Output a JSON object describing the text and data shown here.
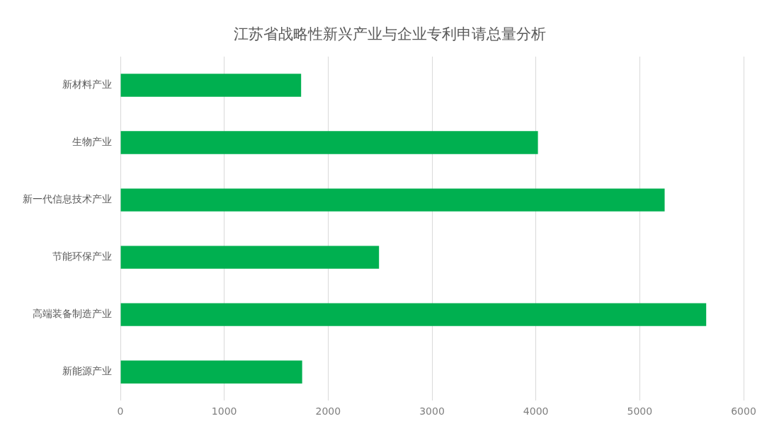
{
  "chart_data": {
    "type": "bar",
    "orientation": "horizontal",
    "title": "江苏省战略性新兴产业与企业专利申请总量分析",
    "categories": [
      "新材料产业",
      "生物产业",
      "新一代信息技术产业",
      "节能环保产业",
      "高端装备制造产业",
      "新能源产业"
    ],
    "values": [
      1740,
      4020,
      5240,
      2490,
      5640,
      1750
    ],
    "color": "#00b050",
    "xlim": [
      0,
      6000
    ],
    "xticks": [
      0,
      1000,
      2000,
      3000,
      4000,
      5000,
      6000
    ],
    "grid": "x"
  }
}
